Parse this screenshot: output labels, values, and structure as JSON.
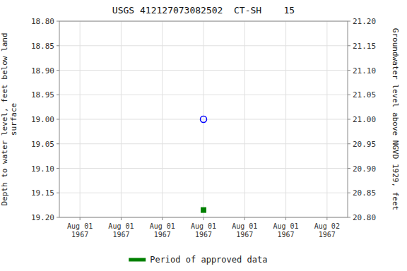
{
  "chart_data": {
    "type": "scatter",
    "title": "USGS 412127073082502  CT-SH    15",
    "y_label": "Depth to water level, feet below land\nsurface",
    "y2_label": "Groundwater level above NGVD 1929, feet",
    "categories": [
      "Aug 01\n1967",
      "Aug 01\n1967",
      "Aug 01\n1967",
      "Aug 01\n1967",
      "Aug 01\n1967",
      "Aug 01\n1967",
      "Aug 02\n1967"
    ],
    "series": [
      {
        "color": "#0000ff",
        "marker": "circle",
        "values": [
          null,
          null,
          null,
          19.0,
          null,
          null,
          null
        ]
      },
      {
        "name": "Period of approved data",
        "color": "#008000",
        "marker": "square",
        "values": [
          null,
          null,
          null,
          19.185,
          null,
          null,
          null
        ]
      }
    ],
    "ylim": [
      19.2,
      18.8
    ],
    "yticks": [
      {
        "value": 18.8,
        "label": "18.80"
      },
      {
        "value": 18.85,
        "label": "18.85"
      },
      {
        "value": 18.9,
        "label": "18.90"
      },
      {
        "value": 18.95,
        "label": "18.95"
      },
      {
        "value": 19.0,
        "label": "19.00"
      },
      {
        "value": 19.05,
        "label": "19.05"
      },
      {
        "value": 19.1,
        "label": "19.10"
      },
      {
        "value": 19.15,
        "label": "19.15"
      },
      {
        "value": 19.2,
        "label": "19.20"
      }
    ],
    "y2lim": [
      20.8,
      21.2
    ],
    "y2ticks": [
      {
        "value": 20.8,
        "label": "20.80"
      },
      {
        "value": 20.85,
        "label": "20.85"
      },
      {
        "value": 20.9,
        "label": "20.90"
      },
      {
        "value": 20.95,
        "label": "20.95"
      },
      {
        "value": 21.0,
        "label": "21.00"
      },
      {
        "value": 21.05,
        "label": "21.05"
      },
      {
        "value": 21.1,
        "label": "21.10"
      },
      {
        "value": 21.15,
        "label": "21.15"
      },
      {
        "value": 21.2,
        "label": "21.20"
      }
    ],
    "grid": true,
    "legend": "bottom"
  }
}
